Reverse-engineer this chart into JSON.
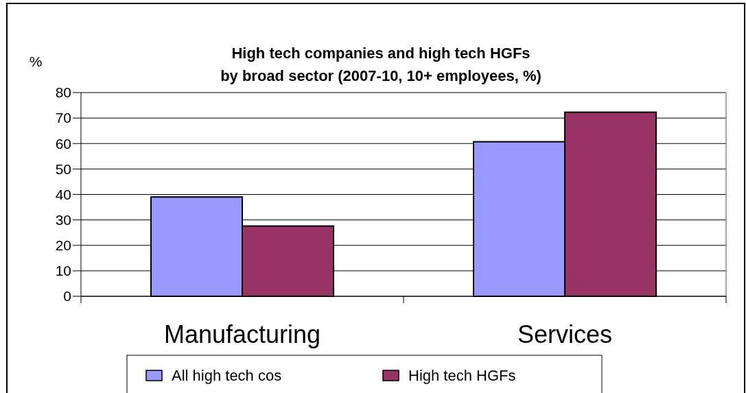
{
  "chart_data": {
    "type": "bar",
    "title": "High tech companies and high tech HGFs by broad sector (2007-10, 10+ employees, %)",
    "ylabel": "%",
    "categories": [
      "Manufacturing",
      "Services"
    ],
    "series": [
      {
        "name": "All high tech cos",
        "color": "#9999ff",
        "values": [
          39,
          60.7
        ]
      },
      {
        "name": "High tech HGFs",
        "color": "#993366",
        "values": [
          27.6,
          72.3
        ]
      }
    ],
    "ylim": [
      0,
      80
    ],
    "yticks": [
      0,
      10,
      20,
      30,
      40,
      50,
      60,
      70,
      80
    ],
    "grid": "y",
    "legend": "bottom"
  }
}
